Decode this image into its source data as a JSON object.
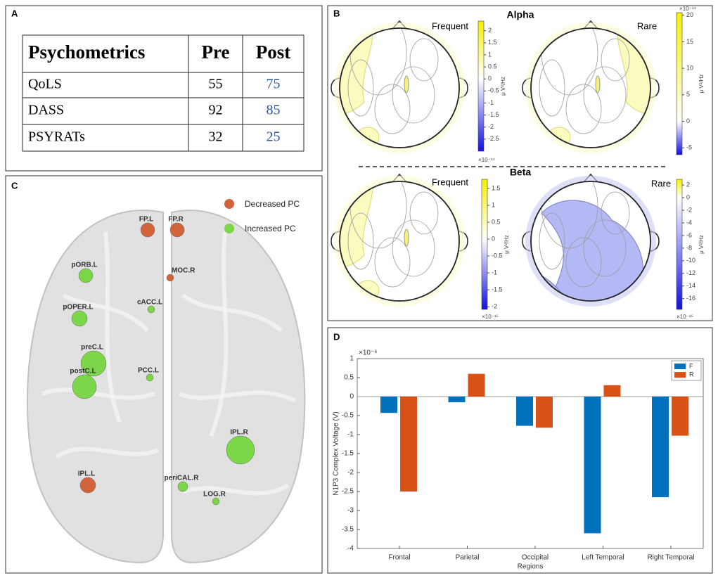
{
  "panel_labels": [
    "A",
    "B",
    "C",
    "D"
  ],
  "table": {
    "header": [
      "Psychometrics",
      "Pre",
      "Post"
    ],
    "rows": [
      [
        "QoLS",
        55,
        75
      ],
      [
        "DASS",
        92,
        85
      ],
      [
        "PSYRATs",
        32,
        25
      ]
    ],
    "post_color": "#2f5496"
  },
  "topomaps": {
    "band_titles": [
      "Alpha",
      "Beta"
    ],
    "maps": [
      {
        "label": "Frequent",
        "unit": "μ V²/Hz",
        "multiplier": "×10⁻¹⁴",
        "lim": [
          -3,
          2.4
        ],
        "ticks": [
          2,
          1.5,
          1,
          0.5,
          0,
          -0.5,
          -1,
          -1.5,
          -2,
          -2.5
        ]
      },
      {
        "label": "Rare",
        "unit": "μ V²/Hz",
        "multiplier": "×10⁻¹⁴",
        "lim": [
          -6.3,
          20.5
        ],
        "ticks": [
          20,
          15,
          10,
          5,
          0,
          -5
        ]
      },
      {
        "label": "Frequent",
        "unit": "μ V²/Hz",
        "multiplier": "×10⁻¹⁵",
        "lim": [
          -2.08,
          1.77
        ],
        "ticks": [
          1.5,
          1,
          0.5,
          0,
          -0.5,
          -1,
          -1.5,
          -2
        ]
      },
      {
        "label": "Rare",
        "unit": "μ V²/Hz",
        "multiplier": "×10⁻¹⁵",
        "lim": [
          -17.7,
          2.9
        ],
        "ticks": [
          2,
          0,
          -2,
          -4,
          -6,
          -8,
          -10,
          -12,
          -14,
          -16
        ]
      }
    ]
  },
  "brain": {
    "legend": [
      "Decreased PC",
      "Increased PC"
    ],
    "colors": [
      "#d2643c",
      "#7cd64a"
    ],
    "nodes": [
      {
        "label": "FP.L",
        "group": 0
      },
      {
        "label": "FP.R",
        "group": 0
      },
      {
        "label": "pORB.L",
        "group": 1
      },
      {
        "label": "MOC.R",
        "group": 0
      },
      {
        "label": "cACC.L",
        "group": 1
      },
      {
        "label": "pOPER.L",
        "group": 1
      },
      {
        "label": "preC.L",
        "group": 1
      },
      {
        "label": "postC.L",
        "group": 1
      },
      {
        "label": "PCC.L",
        "group": 1
      },
      {
        "label": "IPL.R",
        "group": 1
      },
      {
        "label": "IPL.L",
        "group": 0
      },
      {
        "label": "periCAL.R",
        "group": 1
      },
      {
        "label": "LOG.R",
        "group": 1
      }
    ]
  },
  "chart_data": {
    "type": "bar",
    "categories": [
      "Frontal",
      "Parietal",
      "Occipital",
      "Left Temporal",
      "Right Temporal"
    ],
    "series": [
      {
        "name": "F",
        "color": "#0072bd",
        "values": [
          -0.43,
          -0.15,
          -0.77,
          -3.6,
          -2.65
        ]
      },
      {
        "name": "R",
        "color": "#d95319",
        "values": [
          -2.5,
          0.6,
          -0.82,
          0.3,
          -1.03
        ]
      }
    ],
    "ylim": [
      -4,
      1
    ],
    "yticks": [
      1,
      0.5,
      0,
      -0.5,
      -1,
      -1.5,
      -2,
      -2.5,
      -3,
      -3.5,
      -4
    ],
    "ylabel": "N1P3 Complex Voltage (V)",
    "xlabel": "Regions",
    "multiplier": "×10⁻⁶",
    "legend": "upper right",
    "grid": false
  }
}
